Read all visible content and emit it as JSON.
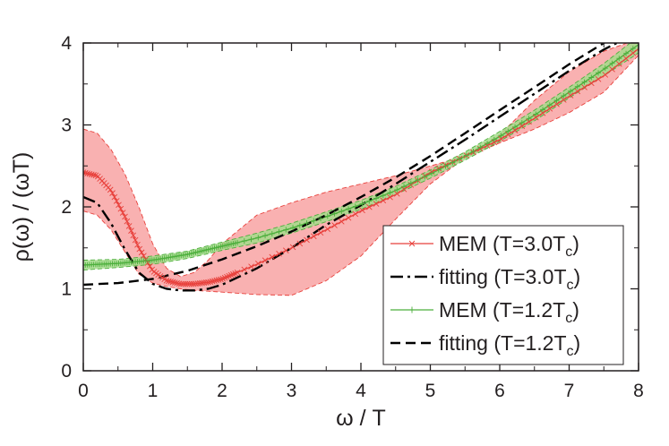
{
  "chart_data": {
    "type": "line",
    "title": "",
    "xlabel": "ω / T",
    "ylabel": "ρ(ω) / (ωT)",
    "xlim": [
      0,
      8
    ],
    "ylim": [
      0,
      4
    ],
    "xticks": [
      "0",
      "1",
      "2",
      "3",
      "4",
      "5",
      "6",
      "7",
      "8"
    ],
    "yticks": [
      "0",
      "1",
      "2",
      "3",
      "4"
    ],
    "legend_position": "bottom-right",
    "series": [
      {
        "name": "MEM (T=3.0T",
        "sub": "c",
        "name_end": ")",
        "style": "solid-x",
        "color": "#e8413c",
        "band_color": "#f8a3a3",
        "x": [
          0,
          0.2,
          0.4,
          0.6,
          0.8,
          1.0,
          1.2,
          1.4,
          1.6,
          1.8,
          2.0,
          2.5,
          3.0,
          3.5,
          4.0,
          4.5,
          5.0,
          5.5,
          6.0,
          6.5,
          7.0,
          7.5,
          8.0
        ],
        "y": [
          2.42,
          2.38,
          2.2,
          1.88,
          1.5,
          1.22,
          1.1,
          1.06,
          1.06,
          1.08,
          1.12,
          1.3,
          1.5,
          1.72,
          1.95,
          2.15,
          2.42,
          2.62,
          2.82,
          3.08,
          3.35,
          3.6,
          3.93
        ],
        "upper": [
          2.95,
          2.9,
          2.7,
          2.4,
          2.0,
          1.55,
          1.25,
          1.15,
          1.2,
          1.35,
          1.55,
          1.9,
          2.05,
          2.18,
          2.28,
          2.38,
          2.5,
          2.62,
          2.88,
          3.3,
          3.65,
          3.9,
          4.05
        ],
        "lower": [
          1.95,
          1.9,
          1.72,
          1.45,
          1.18,
          1.07,
          1.03,
          1.0,
          0.98,
          0.97,
          0.96,
          0.93,
          0.92,
          1.1,
          1.4,
          1.85,
          2.28,
          2.6,
          2.78,
          2.95,
          3.15,
          3.4,
          3.85
        ]
      },
      {
        "name": "fitting (T=3.0T",
        "sub": "c",
        "name_end": ")",
        "style": "dash-dot",
        "color": "#000000",
        "x": [
          0,
          0.2,
          0.4,
          0.6,
          0.8,
          1.0,
          1.2,
          1.4,
          1.6,
          1.8,
          2.0,
          2.5,
          3.0,
          3.5,
          4.0,
          4.5,
          5.0,
          5.5,
          6.0,
          6.5,
          7.0,
          7.5,
          7.8
        ],
        "y": [
          2.12,
          2.05,
          1.8,
          1.48,
          1.2,
          1.06,
          1.0,
          0.98,
          0.98,
          1.0,
          1.05,
          1.25,
          1.5,
          1.78,
          2.02,
          2.28,
          2.55,
          2.82,
          3.1,
          3.38,
          3.66,
          3.92,
          4.05
        ]
      },
      {
        "name": "MEM (T=1.2T",
        "sub": "c",
        "name_end": ")",
        "style": "solid-plus",
        "color": "#4caf3c",
        "band_color": "#a6dc8c",
        "x": [
          0,
          0.5,
          1.0,
          1.5,
          2.0,
          2.5,
          3.0,
          3.5,
          4.0,
          4.5,
          5.0,
          5.5,
          6.0,
          6.5,
          7.0,
          7.5,
          8.0
        ],
        "y": [
          1.29,
          1.31,
          1.35,
          1.42,
          1.52,
          1.62,
          1.74,
          1.88,
          2.03,
          2.2,
          2.4,
          2.62,
          2.86,
          3.12,
          3.4,
          3.68,
          3.98
        ],
        "upper": [
          1.35,
          1.36,
          1.4,
          1.46,
          1.57,
          1.68,
          1.8,
          1.94,
          2.08,
          2.25,
          2.45,
          2.67,
          2.92,
          3.18,
          3.46,
          3.75,
          4.08
        ],
        "lower": [
          1.23,
          1.26,
          1.3,
          1.37,
          1.47,
          1.56,
          1.68,
          1.82,
          1.97,
          2.15,
          2.35,
          2.57,
          2.8,
          3.05,
          3.33,
          3.6,
          3.88
        ]
      },
      {
        "name": "fitting (T=1.2T",
        "sub": "c",
        "name_end": ")",
        "style": "dashed",
        "color": "#000000",
        "x": [
          0,
          0.5,
          1.0,
          1.5,
          2.0,
          2.5,
          3.0,
          3.5,
          4.0,
          4.5,
          5.0,
          5.5,
          6.0,
          6.5,
          7.0,
          7.5,
          7.7
        ],
        "y": [
          1.05,
          1.07,
          1.12,
          1.22,
          1.36,
          1.52,
          1.7,
          1.9,
          2.12,
          2.36,
          2.62,
          2.9,
          3.18,
          3.46,
          3.74,
          4.0,
          4.1
        ]
      }
    ]
  }
}
